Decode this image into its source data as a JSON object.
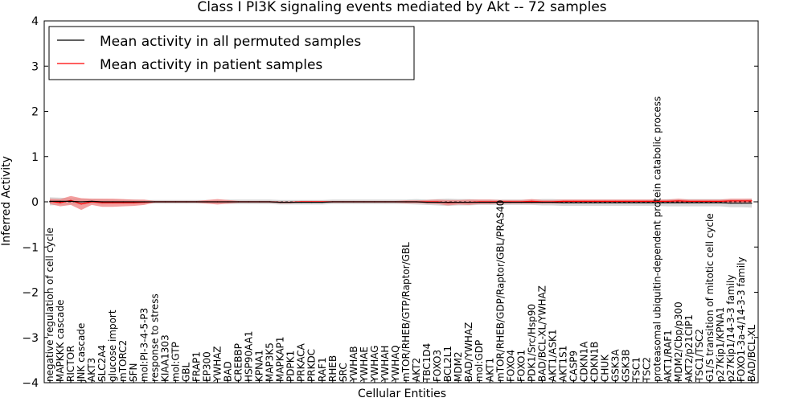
{
  "chart_data": {
    "type": "line",
    "title": "Class I PI3K signaling events mediated by Akt -- 72 samples",
    "xlabel": "Cellular Entities",
    "ylabel": "Inferred Activity",
    "ylim": [
      -4,
      4
    ],
    "yticks": [
      -4,
      -3,
      -2,
      -1,
      0,
      1,
      2,
      3,
      4
    ],
    "ytick_labels": [
      "−4",
      "−3",
      "−2",
      "−1",
      "0",
      "1",
      "2",
      "3",
      "4"
    ],
    "legend": {
      "placement": "top-left",
      "entries": [
        {
          "label": "Mean activity in all permuted samples",
          "color": "#000000"
        },
        {
          "label": "Mean activity in patient samples",
          "color": "#ff0000"
        }
      ]
    },
    "categories": [
      "negative regulation of cell cycle",
      "MAPKKK cascade",
      "RICTOR",
      "JNK cascade",
      "AKT3",
      "SLC2A4",
      "glucose import",
      "mTORC2",
      "SFN",
      "mol:PI-3-4-5-P3",
      "response to stress",
      "KIAA1303",
      "mol:GTP",
      "GBL",
      "FRAP1",
      "EP300",
      "YWHAZ",
      "BAD",
      "CREBBP",
      "HSP90AA1",
      "KPNA1",
      "MAP3K5",
      "MAPKAP1",
      "PDPK1",
      "PRKACA",
      "PRKDC",
      "RAF1",
      "RHEB",
      "SRC",
      "YWHAB",
      "YWHAE",
      "YWHAG",
      "YWHAH",
      "YWHAQ",
      "mTOR/RHEB/GTP/Raptor/GBL",
      "AKT2",
      "TBC1D4",
      "FOXO3",
      "BCL2L1",
      "MDM2",
      "BAD/YWHAZ",
      "mol:GDP",
      "AKT1",
      "mTOR/RHEB/GDP/Raptor/GBL/PRAS40",
      "FOXO4",
      "FOXO1",
      "PDK1/Src/Hsp90",
      "BAD/BCL-XL/YWHAZ",
      "AKT1/ASK1",
      "AKT1S1",
      "CASP9",
      "CDKN1A",
      "CDKN1B",
      "CHUK",
      "GSK3A",
      "GSK3B",
      "TSC1",
      "TSC2",
      "proteasomal ubiquitin-dependent protein catabolic process",
      "AKT1/RAF1",
      "MDM2/Cbp/p300",
      "AKT2/p21CIP1",
      "TSC1/TSC2",
      "G1/S transition of mitotic cell cycle",
      "p27Kip1/KPNA1",
      "p27Kip1/14-3-3 family",
      "FOXO1-3a-4/14-3-3 family",
      "BAD/BCL-XL"
    ],
    "series": [
      {
        "name": "Mean activity in all permuted samples",
        "color": "#000000",
        "values": [
          0.01,
          0.01,
          0.01,
          0.0,
          0.01,
          0.0,
          0.0,
          0.0,
          0.0,
          0.0,
          0.0,
          0.0,
          0.0,
          0.0,
          0.0,
          0.0,
          0.0,
          0.0,
          0.0,
          0.0,
          0.0,
          0.0,
          -0.01,
          -0.01,
          -0.01,
          -0.01,
          -0.01,
          0.0,
          0.0,
          0.0,
          0.0,
          0.0,
          0.0,
          0.0,
          0.0,
          0.0,
          -0.01,
          -0.01,
          -0.01,
          -0.01,
          -0.01,
          -0.01,
          -0.01,
          -0.01,
          -0.01,
          -0.01,
          -0.01,
          -0.01,
          -0.01,
          -0.02,
          -0.02,
          -0.02,
          -0.02,
          -0.02,
          -0.02,
          -0.02,
          -0.02,
          -0.02,
          -0.02,
          -0.02,
          -0.02,
          -0.02,
          -0.02,
          -0.02,
          -0.02,
          -0.03,
          -0.03,
          -0.03
        ],
        "band": [
          0.09,
          0.08,
          0.07,
          0.07,
          0.06,
          0.06,
          0.05,
          0.05,
          0.05,
          0.04,
          0.04,
          0.04,
          0.04,
          0.04,
          0.04,
          0.04,
          0.04,
          0.05,
          0.05,
          0.05,
          0.05,
          0.05,
          0.05,
          0.05,
          0.05,
          0.05,
          0.05,
          0.05,
          0.05,
          0.05,
          0.05,
          0.05,
          0.05,
          0.05,
          0.05,
          0.06,
          0.06,
          0.07,
          0.08,
          0.07,
          0.07,
          0.06,
          0.06,
          0.06,
          0.06,
          0.06,
          0.06,
          0.07,
          0.07,
          0.07,
          0.07,
          0.07,
          0.07,
          0.07,
          0.07,
          0.07,
          0.07,
          0.07,
          0.07,
          0.08,
          0.08,
          0.08,
          0.08,
          0.08,
          0.08,
          0.09,
          0.09,
          0.1
        ]
      },
      {
        "name": "Mean activity in patient samples",
        "color": "#ff0000",
        "values": [
          0.01,
          -0.02,
          0.03,
          -0.05,
          0.0,
          -0.02,
          -0.02,
          -0.02,
          -0.02,
          -0.01,
          0.0,
          0.0,
          0.0,
          0.0,
          0.0,
          0.0,
          0.0,
          0.0,
          0.0,
          0.0,
          0.0,
          0.0,
          -0.01,
          -0.01,
          0.0,
          0.0,
          0.0,
          0.0,
          0.0,
          0.0,
          0.0,
          0.0,
          0.0,
          0.0,
          0.0,
          0.0,
          0.0,
          0.0,
          -0.02,
          -0.01,
          -0.01,
          0.0,
          0.0,
          0.0,
          0.0,
          0.0,
          0.01,
          0.0,
          0.0,
          0.01,
          0.01,
          0.01,
          0.01,
          0.01,
          0.01,
          0.01,
          0.01,
          0.01,
          0.01,
          0.01,
          0.02,
          0.01,
          0.01,
          0.01,
          0.01,
          0.02,
          0.02,
          0.02
        ],
        "band": [
          0.06,
          0.08,
          0.1,
          0.13,
          0.07,
          0.09,
          0.09,
          0.08,
          0.07,
          0.06,
          0.02,
          0.02,
          0.02,
          0.02,
          0.02,
          0.04,
          0.06,
          0.04,
          0.02,
          0.02,
          0.02,
          0.02,
          0.02,
          0.02,
          0.02,
          0.02,
          0.02,
          0.02,
          0.02,
          0.02,
          0.02,
          0.02,
          0.02,
          0.02,
          0.03,
          0.03,
          0.04,
          0.05,
          0.06,
          0.05,
          0.06,
          0.05,
          0.05,
          0.04,
          0.04,
          0.04,
          0.05,
          0.04,
          0.04,
          0.04,
          0.04,
          0.04,
          0.04,
          0.04,
          0.04,
          0.04,
          0.04,
          0.04,
          0.04,
          0.04,
          0.05,
          0.04,
          0.04,
          0.04,
          0.04,
          0.05,
          0.05,
          0.05
        ]
      }
    ]
  }
}
